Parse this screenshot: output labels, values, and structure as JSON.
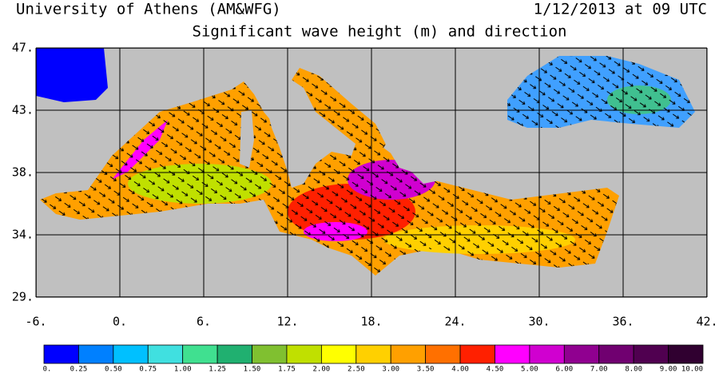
{
  "header": {
    "source": "University of Athens (AM&WFG)",
    "timestamp": "1/12/2013 at 09 UTC"
  },
  "title": "Significant wave height (m) and direction",
  "map": {
    "lat_labels": [
      "47.",
      "43.",
      "38.",
      "34.",
      "29."
    ],
    "lon_labels": [
      "-6.",
      "0.",
      "6.",
      "12.",
      "18.",
      "24.",
      "30.",
      "36.",
      "42."
    ]
  },
  "colorbar": {
    "colors": [
      "#0000ff",
      "#0080ff",
      "#00c0ff",
      "#40e0e0",
      "#40e090",
      "#20b070",
      "#80c030",
      "#c0e000",
      "#ffff00",
      "#ffd000",
      "#ffa000",
      "#ff7000",
      "#ff2000",
      "#ff00ff",
      "#d000d0",
      "#900090",
      "#700070",
      "#500050",
      "#300030"
    ],
    "labels": [
      "0.",
      "0.25",
      "0.50",
      "0.75",
      "1.00",
      "1.25",
      "1.50",
      "1.75",
      "2.00",
      "2.50",
      "3.00",
      "3.50",
      "4.00",
      "4.50",
      "5.00",
      "6.00",
      "7.00",
      "8.00",
      "9.00",
      "10.00"
    ]
  }
}
